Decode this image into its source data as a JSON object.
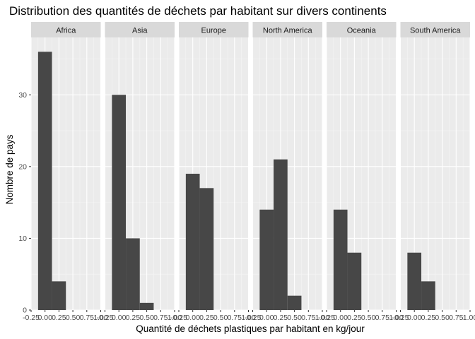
{
  "chart_data": {
    "type": "bar",
    "title": "Distribution des quantités de déchets par habitant sur divers continents",
    "xlabel": "Quantité de déchets plastiques par habitant en kg/jour",
    "ylabel": "Nombre de pays",
    "xlim": [
      -0.25,
      1.0
    ],
    "ylim": [
      0,
      38
    ],
    "x_ticks": [
      "-0.25",
      "0.00",
      "0.25",
      "0.50",
      "0.75",
      "1.00"
    ],
    "x_tick_values": [
      -0.25,
      0,
      0.25,
      0.5,
      0.75,
      1.0
    ],
    "y_ticks": [
      "0",
      "10",
      "20",
      "30"
    ],
    "y_tick_values": [
      0,
      10,
      20,
      30
    ],
    "bin_edges": [
      -0.125,
      0.125,
      0.375,
      0.625
    ],
    "panels": [
      {
        "name": "Africa",
        "values": [
          36,
          4,
          0
        ]
      },
      {
        "name": "Asia",
        "values": [
          30,
          10,
          1
        ]
      },
      {
        "name": "Europe",
        "values": [
          19,
          17,
          0
        ]
      },
      {
        "name": "North America",
        "values": [
          14,
          21,
          2
        ]
      },
      {
        "name": "Oceania",
        "values": [
          14,
          8,
          0
        ]
      },
      {
        "name": "South America",
        "values": [
          8,
          4,
          0
        ]
      }
    ],
    "grid": true,
    "bar_color": "#474747",
    "panel_background": "#ebebeb",
    "strip_background": "#d9d9d9"
  }
}
